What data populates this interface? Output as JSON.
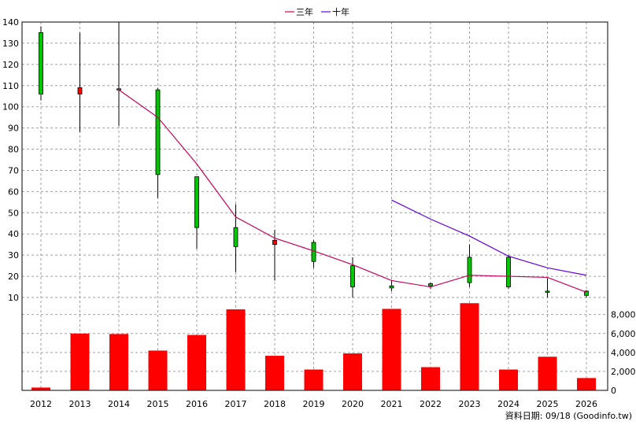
{
  "chart_data": [
    {
      "type": "candlestick",
      "x": [
        2012,
        2013,
        2014,
        2015,
        2016,
        2017,
        2018,
        2019,
        2020,
        2021,
        2022,
        2023,
        2024,
        2025,
        2026
      ],
      "open": [
        106,
        109,
        108.5,
        68,
        43,
        34,
        37,
        27,
        15,
        14.5,
        15.5,
        17,
        15,
        13,
        11
      ],
      "close": [
        135,
        106,
        108.5,
        108,
        67,
        43,
        35,
        36,
        25,
        15.5,
        16.5,
        29,
        29,
        13,
        13
      ],
      "high": [
        138,
        135,
        140,
        109,
        67,
        54,
        42,
        37,
        29,
        18,
        17,
        35,
        30,
        19,
        13.5
      ],
      "low": [
        103,
        88,
        91,
        57,
        33,
        22,
        18,
        24,
        10,
        13,
        14,
        15,
        14,
        10,
        10
      ],
      "up_color": "#00c800",
      "down_color": "#ff0000",
      "series": [
        {
          "name": "三年",
          "color": "#c8005a",
          "x": [
            2014,
            2015,
            2016,
            2017,
            2018,
            2019,
            2020,
            2021,
            2022,
            2023,
            2024,
            2025,
            2026
          ],
          "values": [
            108,
            95,
            73,
            48,
            38,
            32,
            25.5,
            18,
            15,
            20.5,
            20,
            19.5,
            12.5
          ]
        },
        {
          "name": "十年",
          "color": "#6400dc",
          "x": [
            2021,
            2022,
            2023,
            2024,
            2025,
            2026
          ],
          "values": [
            56,
            47,
            39,
            29.5,
            24,
            20.5
          ]
        }
      ],
      "ylim": [
        10,
        140
      ],
      "yticks": [
        "140",
        "130",
        "120",
        "110",
        "100",
        "90",
        "80",
        "70",
        "60",
        "50",
        "40",
        "30",
        "20",
        "10"
      ],
      "ytick_values": [
        140,
        130,
        120,
        110,
        100,
        90,
        80,
        70,
        60,
        50,
        40,
        30,
        20,
        10
      ],
      "legend_position": "top-center",
      "grid": true
    },
    {
      "type": "bar",
      "categories": [
        "2012",
        "2013",
        "2014",
        "2015",
        "2016",
        "2017",
        "2018",
        "2019",
        "2020",
        "2021",
        "2022",
        "2023",
        "2024",
        "2025",
        "2026"
      ],
      "values": [
        300,
        6000,
        5950,
        4200,
        5850,
        8550,
        3650,
        2200,
        3900,
        8600,
        2450,
        9200,
        2200,
        3550,
        1300
      ],
      "color": "#ff0000",
      "ylim": [
        0,
        9800
      ],
      "yticks": [
        "8,000",
        "6,000",
        "4,000",
        "2,000",
        "0"
      ],
      "ytick_values": [
        8000,
        6000,
        4000,
        2000,
        0
      ],
      "grid": true
    }
  ],
  "footer": {
    "source_note": "資料日期: 09/18  (Goodinfo.tw)"
  }
}
